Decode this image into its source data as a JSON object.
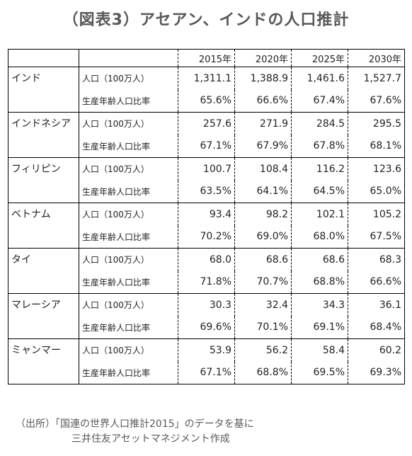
{
  "title": "（図表3）アセアン、インドの人口推計",
  "table": {
    "years": [
      "2015年",
      "2020年",
      "2025年",
      "2030年"
    ],
    "metric_population": "人口（100万人）",
    "metric_ratio": "生産年齢人口比率",
    "countries": [
      {
        "name": "インド",
        "population": [
          "1,311.1",
          "1,388.9",
          "1,461.6",
          "1,527.7"
        ],
        "ratio": [
          "65.6%",
          "66.6%",
          "67.4%",
          "67.6%"
        ]
      },
      {
        "name": "インドネシア",
        "population": [
          "257.6",
          "271.9",
          "284.5",
          "295.5"
        ],
        "ratio": [
          "67.1%",
          "67.9%",
          "67.8%",
          "68.1%"
        ]
      },
      {
        "name": "フィリピン",
        "population": [
          "100.7",
          "108.4",
          "116.2",
          "123.6"
        ],
        "ratio": [
          "63.5%",
          "64.1%",
          "64.5%",
          "65.0%"
        ]
      },
      {
        "name": "ベトナム",
        "population": [
          "93.4",
          "98.2",
          "102.1",
          "105.2"
        ],
        "ratio": [
          "70.2%",
          "69.0%",
          "68.0%",
          "67.5%"
        ]
      },
      {
        "name": "タイ",
        "population": [
          "68.0",
          "68.6",
          "68.6",
          "68.3"
        ],
        "ratio": [
          "71.8%",
          "70.7%",
          "68.8%",
          "66.6%"
        ]
      },
      {
        "name": "マレーシア",
        "population": [
          "30.3",
          "32.4",
          "34.3",
          "36.1"
        ],
        "ratio": [
          "69.6%",
          "70.1%",
          "69.1%",
          "68.4%"
        ]
      },
      {
        "name": "ミャンマー",
        "population": [
          "53.9",
          "56.2",
          "58.4",
          "60.2"
        ],
        "ratio": [
          "67.1%",
          "68.8%",
          "69.5%",
          "69.3%"
        ]
      }
    ]
  },
  "source": {
    "line1": "（出所）「国連の世界人口推計2015」のデータを基に",
    "line2": "三井住友アセットマネジメント作成"
  }
}
